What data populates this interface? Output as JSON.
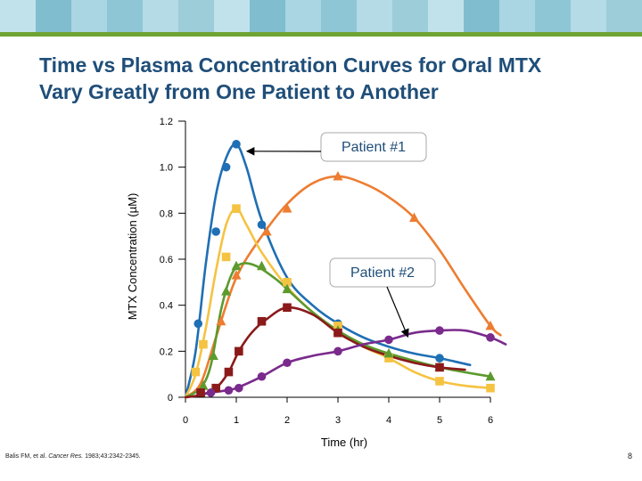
{
  "slide": {
    "title_line1": "Time vs Plasma Concentration Curves for Oral MTX",
    "title_line2": "Vary Greatly from One Patient to Another",
    "citation_pre": "Balis FM, et al. ",
    "citation_journal": "Cancer Res.",
    "citation_post": " 1983;43:2342-2345.",
    "slide_number": "8"
  },
  "colors": {
    "title": "#1f4e79",
    "banner": [
      "#8ec6d6",
      "#b4dbe6",
      "#9ccdd9",
      "#c2e2eb",
      "#7fbdcf",
      "#a9d6e2"
    ],
    "rule": "#6fa433"
  },
  "chart_data": {
    "type": "line",
    "title": "",
    "xlabel": "Time (hr)",
    "ylabel": "MTX Concentration (µM)",
    "xlim": [
      0,
      6
    ],
    "ylim": [
      0,
      1.2
    ],
    "xticks": [
      "0",
      "1",
      "2",
      "3",
      "4",
      "5",
      "6"
    ],
    "yticks": [
      "0",
      "0.2",
      "0.4",
      "0.6",
      "0.8",
      "1.0",
      "1.2"
    ],
    "grid": false,
    "series": [
      {
        "name": "Patient #1",
        "color": "#1f6fb4",
        "marker": "circle",
        "points": [
          [
            0.25,
            0.32
          ],
          [
            0.6,
            0.72
          ],
          [
            0.8,
            1.0
          ],
          [
            1.0,
            1.1
          ],
          [
            1.5,
            0.75
          ],
          [
            3.0,
            0.32
          ],
          [
            5.0,
            0.17
          ]
        ],
        "curve": [
          [
            0,
            0
          ],
          [
            0.2,
            0.2
          ],
          [
            0.4,
            0.58
          ],
          [
            0.6,
            0.88
          ],
          [
            0.8,
            1.04
          ],
          [
            1.0,
            1.1
          ],
          [
            1.2,
            1.0
          ],
          [
            1.5,
            0.77
          ],
          [
            2.0,
            0.52
          ],
          [
            2.5,
            0.4
          ],
          [
            3.0,
            0.32
          ],
          [
            3.5,
            0.26
          ],
          [
            4.0,
            0.22
          ],
          [
            4.5,
            0.19
          ],
          [
            5.0,
            0.17
          ],
          [
            5.6,
            0.14
          ]
        ]
      },
      {
        "name": "Orange",
        "color": "#ed7d31",
        "marker": "triangle",
        "points": [
          [
            0.35,
            0.05
          ],
          [
            0.7,
            0.33
          ],
          [
            1.0,
            0.53
          ],
          [
            1.6,
            0.72
          ],
          [
            2.0,
            0.82
          ],
          [
            3.0,
            0.96
          ],
          [
            4.5,
            0.78
          ],
          [
            6.0,
            0.31
          ]
        ],
        "curve": [
          [
            0,
            0
          ],
          [
            0.3,
            0.06
          ],
          [
            0.6,
            0.26
          ],
          [
            1.0,
            0.52
          ],
          [
            1.5,
            0.7
          ],
          [
            2.0,
            0.84
          ],
          [
            2.5,
            0.93
          ],
          [
            3.0,
            0.96
          ],
          [
            3.5,
            0.93
          ],
          [
            4.0,
            0.87
          ],
          [
            4.5,
            0.78
          ],
          [
            5.0,
            0.64
          ],
          [
            5.5,
            0.47
          ],
          [
            6.0,
            0.31
          ],
          [
            6.2,
            0.27
          ]
        ]
      },
      {
        "name": "Yellow",
        "color": "#f5c342",
        "marker": "square",
        "points": [
          [
            0.2,
            0.11
          ],
          [
            0.35,
            0.23
          ],
          [
            0.8,
            0.61
          ],
          [
            1.0,
            0.82
          ],
          [
            2.0,
            0.5
          ],
          [
            3.0,
            0.31
          ],
          [
            4.0,
            0.17
          ],
          [
            5.0,
            0.07
          ],
          [
            6.0,
            0.04
          ]
        ],
        "curve": [
          [
            0,
            0
          ],
          [
            0.2,
            0.1
          ],
          [
            0.4,
            0.3
          ],
          [
            0.6,
            0.55
          ],
          [
            0.8,
            0.75
          ],
          [
            1.0,
            0.82
          ],
          [
            1.2,
            0.75
          ],
          [
            1.5,
            0.63
          ],
          [
            2.0,
            0.48
          ],
          [
            2.5,
            0.37
          ],
          [
            3.0,
            0.29
          ],
          [
            3.5,
            0.22
          ],
          [
            4.0,
            0.17
          ],
          [
            4.5,
            0.11
          ],
          [
            5.0,
            0.07
          ],
          [
            5.5,
            0.05
          ],
          [
            6.0,
            0.04
          ]
        ]
      },
      {
        "name": "Green",
        "color": "#5c9a2e",
        "marker": "triangle",
        "points": [
          [
            0.35,
            0.05
          ],
          [
            0.55,
            0.18
          ],
          [
            0.8,
            0.46
          ],
          [
            1.0,
            0.57
          ],
          [
            1.5,
            0.57
          ],
          [
            2.0,
            0.47
          ],
          [
            3.0,
            0.29
          ],
          [
            4.0,
            0.19
          ],
          [
            5.0,
            0.13
          ],
          [
            6.0,
            0.09
          ]
        ],
        "curve": [
          [
            0,
            0
          ],
          [
            0.3,
            0.04
          ],
          [
            0.5,
            0.14
          ],
          [
            0.7,
            0.38
          ],
          [
            0.9,
            0.53
          ],
          [
            1.1,
            0.58
          ],
          [
            1.4,
            0.57
          ],
          [
            1.8,
            0.51
          ],
          [
            2.0,
            0.47
          ],
          [
            2.5,
            0.37
          ],
          [
            3.0,
            0.29
          ],
          [
            3.5,
            0.23
          ],
          [
            4.0,
            0.19
          ],
          [
            5.0,
            0.13
          ],
          [
            6.0,
            0.09
          ]
        ]
      },
      {
        "name": "Dark red",
        "color": "#8b1a1a",
        "marker": "square",
        "points": [
          [
            0.3,
            0.02
          ],
          [
            0.6,
            0.04
          ],
          [
            0.85,
            0.11
          ],
          [
            1.05,
            0.2
          ],
          [
            1.5,
            0.33
          ],
          [
            2.0,
            0.39
          ],
          [
            3.0,
            0.28
          ],
          [
            5.0,
            0.13
          ]
        ],
        "curve": [
          [
            0,
            0
          ],
          [
            0.3,
            0.01
          ],
          [
            0.6,
            0.04
          ],
          [
            0.85,
            0.11
          ],
          [
            1.05,
            0.2
          ],
          [
            1.3,
            0.28
          ],
          [
            1.6,
            0.34
          ],
          [
            2.0,
            0.39
          ],
          [
            2.5,
            0.36
          ],
          [
            3.0,
            0.28
          ],
          [
            3.5,
            0.22
          ],
          [
            4.0,
            0.18
          ],
          [
            4.5,
            0.15
          ],
          [
            5.0,
            0.13
          ],
          [
            5.5,
            0.12
          ]
        ]
      },
      {
        "name": "Patient #2",
        "color": "#7a2a8c",
        "marker": "circle",
        "points": [
          [
            0.5,
            0.02
          ],
          [
            0.85,
            0.03
          ],
          [
            1.05,
            0.04
          ],
          [
            1.5,
            0.09
          ],
          [
            2.0,
            0.15
          ],
          [
            3.0,
            0.2
          ],
          [
            4.0,
            0.25
          ],
          [
            5.0,
            0.29
          ],
          [
            6.0,
            0.26
          ]
        ],
        "curve": [
          [
            0.3,
            0.01
          ],
          [
            0.5,
            0.02
          ],
          [
            0.8,
            0.03
          ],
          [
            1.0,
            0.04
          ],
          [
            1.5,
            0.09
          ],
          [
            2.0,
            0.15
          ],
          [
            2.5,
            0.18
          ],
          [
            3.0,
            0.2
          ],
          [
            3.5,
            0.23
          ],
          [
            4.0,
            0.25
          ],
          [
            4.5,
            0.28
          ],
          [
            5.0,
            0.29
          ],
          [
            5.5,
            0.29
          ],
          [
            6.0,
            0.26
          ],
          [
            6.3,
            0.23
          ]
        ]
      }
    ],
    "annotations": [
      {
        "text": "Patient #1",
        "series": "Patient #1",
        "point": [
          1.0,
          1.1
        ]
      },
      {
        "text": "Patient #2",
        "series": "Patient #2",
        "point": [
          4.2,
          0.24
        ]
      }
    ]
  }
}
